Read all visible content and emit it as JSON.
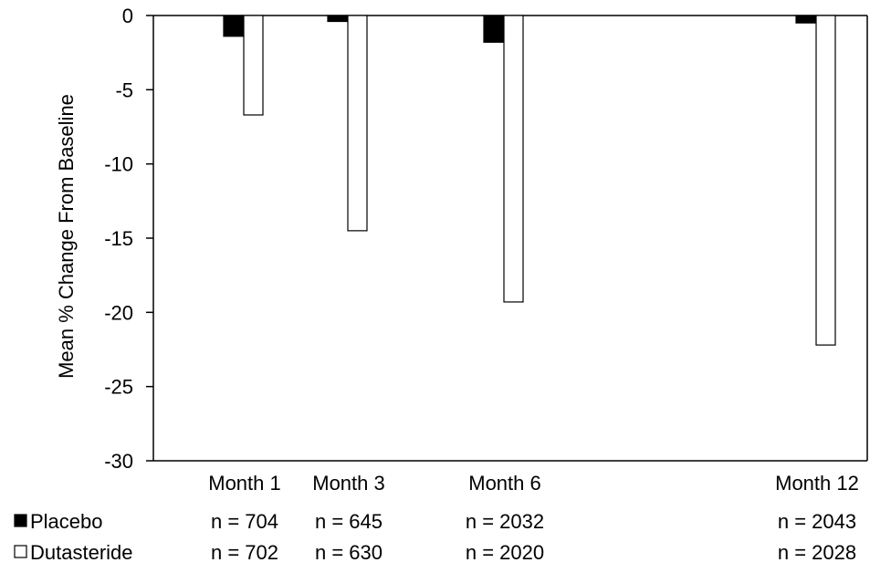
{
  "chart_data": {
    "type": "bar",
    "ylabel": "Mean % Change From Baseline",
    "ylim": [
      -30,
      0
    ],
    "yticks": [
      0,
      -5,
      -10,
      -15,
      -20,
      -25,
      -30
    ],
    "categories": [
      "Month 1",
      "Month 3",
      "Month 6",
      "Month 12"
    ],
    "x_months": [
      1,
      3,
      6,
      12
    ],
    "series": [
      {
        "name": "Placebo",
        "fill": "#000000",
        "values": [
          -1.4,
          -0.4,
          -1.8,
          -0.5
        ],
        "n": [
          "n = 704",
          "n = 645",
          "n = 2032",
          "n = 2043"
        ]
      },
      {
        "name": "Dutasteride",
        "fill": "#ffffff",
        "values": [
          -6.7,
          -14.5,
          -19.3,
          -22.2
        ],
        "n": [
          "n = 702",
          "n = 630",
          "n = 2020",
          "n = 2028"
        ]
      }
    ],
    "grid": false,
    "legend_position": "bottom-left"
  }
}
